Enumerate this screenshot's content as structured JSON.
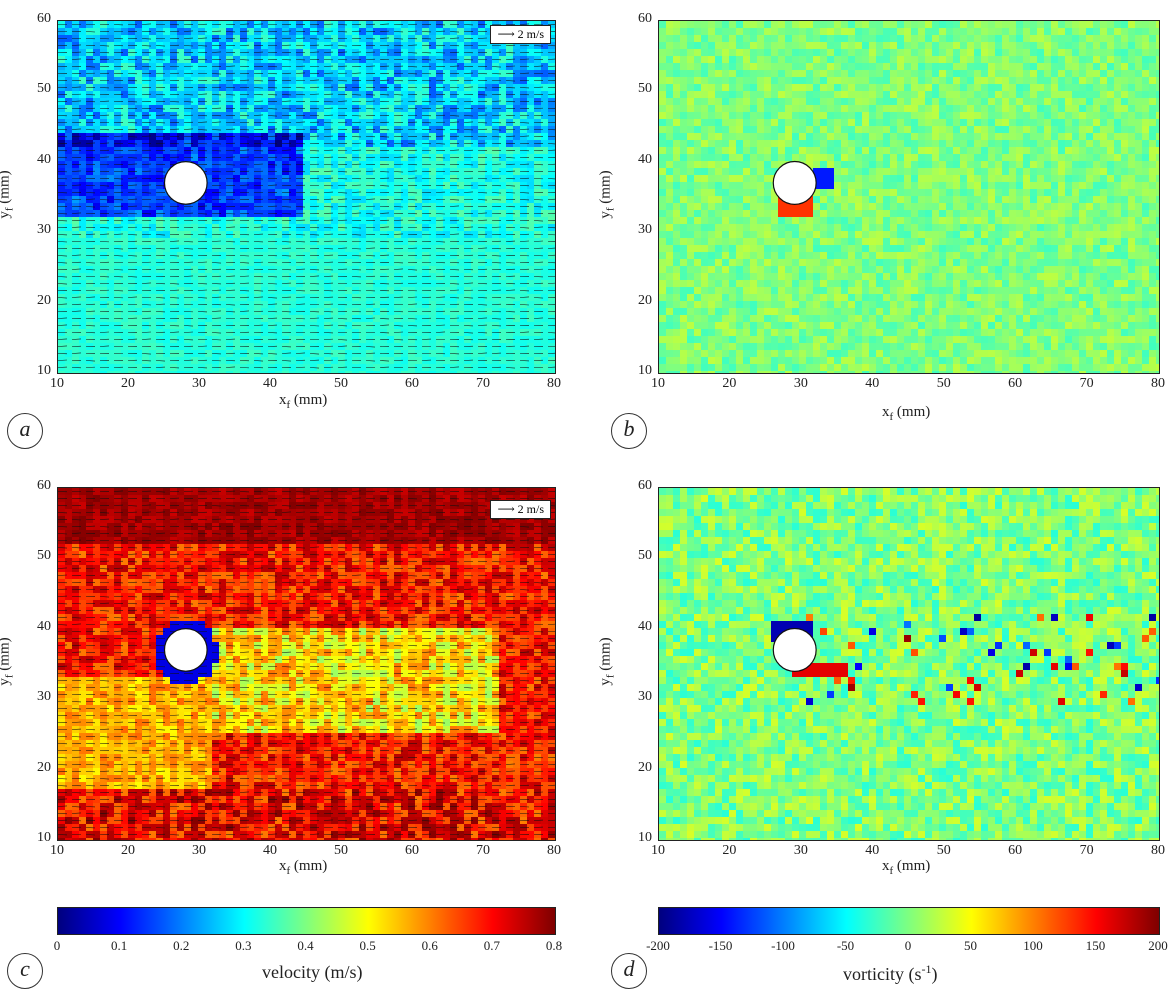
{
  "colors": {
    "jet": [
      "#00007f",
      "#0000ff",
      "#007fff",
      "#00ffff",
      "#7fff7f",
      "#ffff00",
      "#ff7f00",
      "#ff0000",
      "#7f0000"
    ]
  },
  "chart_data": [
    {
      "panel": "a",
      "type": "heatmap",
      "field": "velocity magnitude with vector overlay",
      "xlabel_main": "x",
      "xlabel_sub": "f",
      "xlabel_unit": " (mm)",
      "ylabel_main": "y",
      "ylabel_sub": "f",
      "ylabel_unit": " (mm)",
      "xlim": [
        10,
        80
      ],
      "ylim": [
        10,
        60
      ],
      "xticks": [
        "10",
        "20",
        "30",
        "40",
        "50",
        "60",
        "70",
        "80"
      ],
      "yticks": [
        "10",
        "20",
        "30",
        "40",
        "50",
        "60"
      ],
      "reference_arrow": "2 m/s",
      "obstacle_center": [
        28,
        37
      ],
      "obstacle_radius": 3,
      "scale": "velocity",
      "dominant_range": [
        0.2,
        0.35
      ]
    },
    {
      "panel": "b",
      "type": "heatmap",
      "field": "vorticity",
      "xlabel_main": "x",
      "xlabel_sub": "f",
      "xlabel_unit": " (mm)",
      "ylabel_main": "y",
      "ylabel_sub": "f",
      "ylabel_unit": " (mm)",
      "xlim": [
        10,
        80
      ],
      "ylim": [
        10,
        60
      ],
      "xticks": [
        "10",
        "20",
        "30",
        "40",
        "50",
        "60",
        "70",
        "80"
      ],
      "yticks": [
        "10",
        "20",
        "30",
        "40",
        "50",
        "60"
      ],
      "obstacle_center": [
        29,
        37
      ],
      "obstacle_radius": 3,
      "scale": "vorticity",
      "dominant_range": [
        -20,
        20
      ]
    },
    {
      "panel": "c",
      "type": "heatmap",
      "field": "velocity magnitude with vector overlay",
      "xlabel_main": "x",
      "xlabel_sub": "f",
      "xlabel_unit": " (mm)",
      "ylabel_main": "y",
      "ylabel_sub": "f",
      "ylabel_unit": " (mm)",
      "xlim": [
        10,
        80
      ],
      "ylim": [
        10,
        60
      ],
      "xticks": [
        "10",
        "20",
        "30",
        "40",
        "50",
        "60",
        "70",
        "80"
      ],
      "yticks": [
        "10",
        "20",
        "30",
        "40",
        "50",
        "60"
      ],
      "reference_arrow": "2 m/s",
      "obstacle_center": [
        28,
        37
      ],
      "obstacle_radius": 3,
      "scale": "velocity",
      "dominant_range": [
        0.5,
        0.8
      ]
    },
    {
      "panel": "d",
      "type": "heatmap",
      "field": "vorticity",
      "xlabel_main": "x",
      "xlabel_sub": "f",
      "xlabel_unit": " (mm)",
      "ylabel_main": "y",
      "ylabel_sub": "f",
      "ylabel_unit": " (mm)",
      "xlim": [
        10,
        80
      ],
      "ylim": [
        10,
        60
      ],
      "xticks": [
        "10",
        "20",
        "30",
        "40",
        "50",
        "60",
        "70",
        "80"
      ],
      "yticks": [
        "10",
        "20",
        "30",
        "40",
        "50",
        "60"
      ],
      "obstacle_center": [
        29,
        37
      ],
      "obstacle_radius": 3,
      "scale": "vorticity",
      "dominant_range": [
        -50,
        50
      ]
    }
  ],
  "colorbars": [
    {
      "name": "velocity",
      "ticks": [
        "0",
        "0.1",
        "0.2",
        "0.3",
        "0.4",
        "0.5",
        "0.6",
        "0.7",
        "0.8"
      ],
      "range": [
        0,
        0.8
      ],
      "label": "velocity (m/s)"
    },
    {
      "name": "vorticity",
      "ticks": [
        "-200",
        "-150",
        "-100",
        "-50",
        "0",
        "50",
        "100",
        "150",
        "200"
      ],
      "range": [
        -200,
        200
      ],
      "label_main": "vorticity (s",
      "label_sup": "-1",
      "label_end": ")"
    }
  ]
}
